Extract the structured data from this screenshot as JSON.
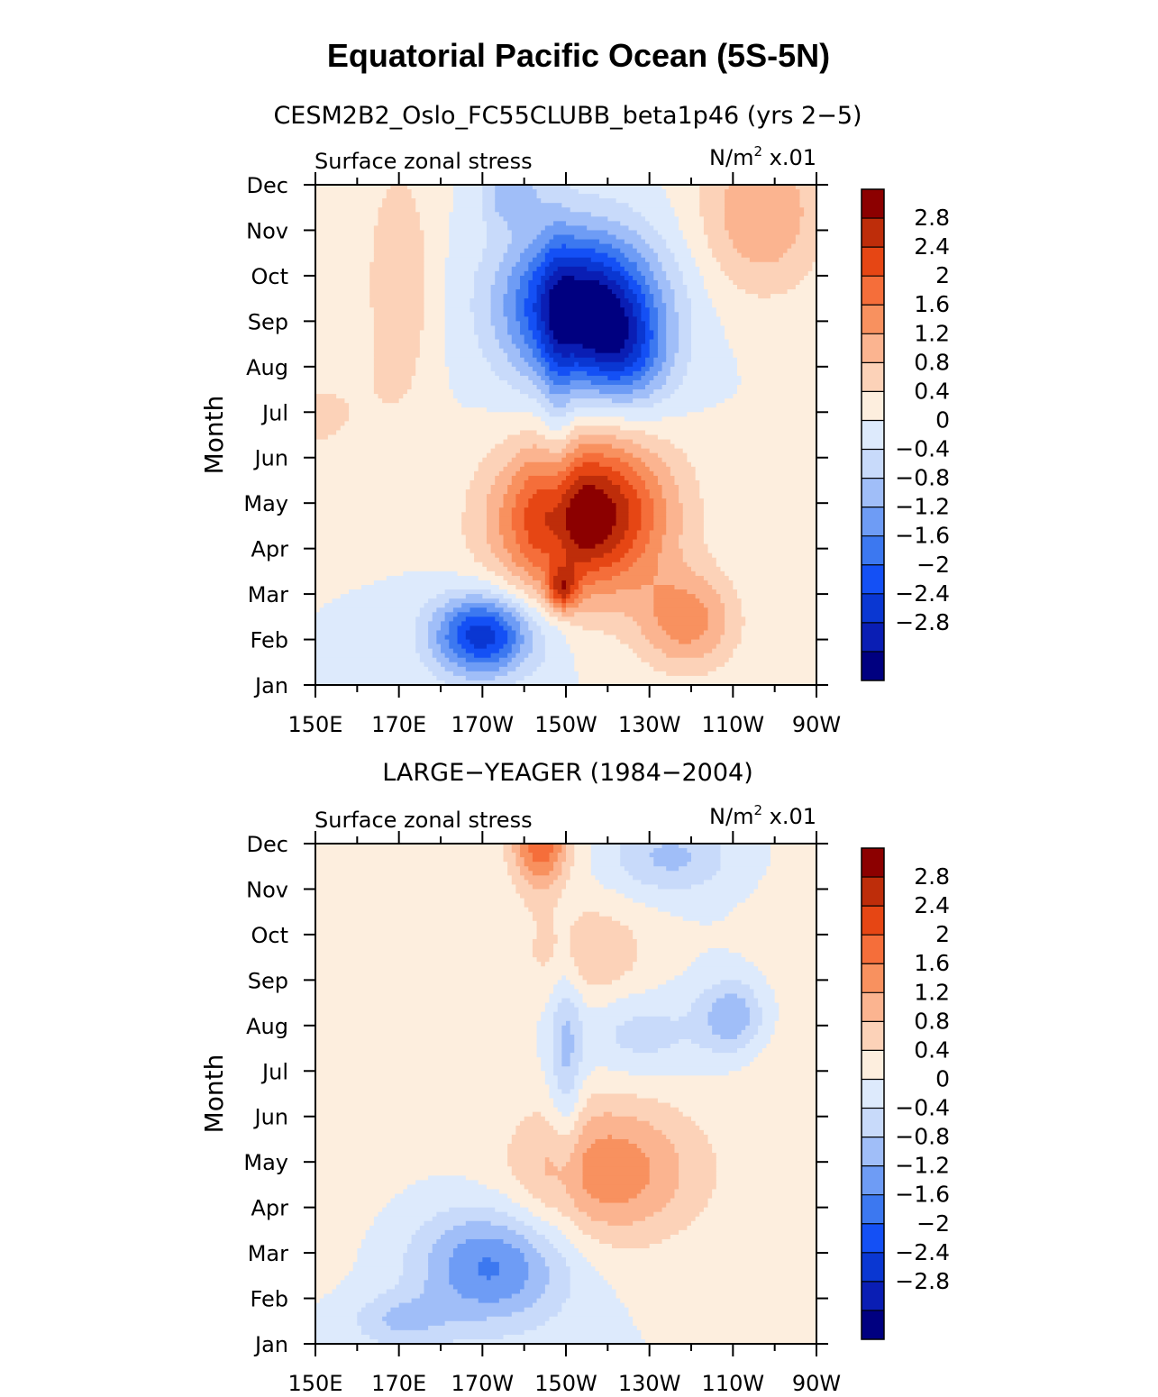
{
  "figure": {
    "title": "Equatorial Pacific Ocean (5S-5N)"
  },
  "colors": {
    "palette": [
      "#000080",
      "#0a1eb4",
      "#0a37d2",
      "#1450f5",
      "#3c78f0",
      "#6e9cf5",
      "#a0bef8",
      "#c8dafa",
      "#ddeafc",
      "#fdeede",
      "#fcd2b8",
      "#fbb490",
      "#f8915f",
      "#f56e3a",
      "#e64614",
      "#be2d0a",
      "#8c0000"
    ]
  },
  "chart_data": [
    {
      "type": "heatmap",
      "subtitle": "CESM2B2_Oslo_FC55CLUBB_beta1p46 (yrs 2−5)",
      "left_label": "Surface zonal stress",
      "right_label": "N/m",
      "units_exponent": "2",
      "units_scale": "x.01",
      "ylabel": "Month",
      "x_ticks": [
        "150E",
        "170E",
        "170W",
        "150W",
        "130W",
        "110W",
        "90W"
      ],
      "x_range_deg_lon": [
        150,
        270
      ],
      "y_ticks": [
        "Jan",
        "Feb",
        "Mar",
        "Apr",
        "May",
        "Jun",
        "Jul",
        "Aug",
        "Sep",
        "Oct",
        "Nov",
        "Dec"
      ],
      "colorbar_labels": [
        "2.8",
        "2.4",
        "2",
        "1.6",
        "1.2",
        "0.8",
        "0.4",
        "0",
        "−0.4",
        "−0.8",
        "−1.2",
        "−1.6",
        "−2",
        "−2.4",
        "−2.8"
      ],
      "levels": [
        -3.2,
        -2.8,
        -2.4,
        -2.0,
        -1.6,
        -1.2,
        -0.8,
        -0.4,
        0,
        0.4,
        0.8,
        1.2,
        1.6,
        2.0,
        2.4,
        2.8
      ],
      "blobs": [
        {
          "lon": 146,
          "month": 8.3,
          "rlon": 18,
          "rmonth": 1.7,
          "value": -3.5,
          "rot": -25
        },
        {
          "lon": 136,
          "month": 7.3,
          "rlon": 10,
          "rmonth": 1.2,
          "value": -1.2,
          "rot": -20
        },
        {
          "lon": 197,
          "month": 10.8,
          "rlon": 7,
          "rmonth": 0.7,
          "value": -1.0,
          "rot": 0
        },
        {
          "lon": 146,
          "month": 3.7,
          "rlon": 20,
          "rmonth": 1.7,
          "value": 3.3,
          "rot": -25
        },
        {
          "lon": 121,
          "month": 1.4,
          "rlon": 12,
          "rmonth": 1.1,
          "value": 1.4,
          "rot": 0
        },
        {
          "lon": 103,
          "month": 10.4,
          "rlon": 15,
          "rmonth": 1.8,
          "value": 1.2,
          "rot": 0
        },
        {
          "lon": 170,
          "month": 8.8,
          "rlon": 8,
          "rmonth": 2.7,
          "value": 0.8,
          "rot": 0
        },
        {
          "lon": 190,
          "month": 1.1,
          "rlon": 12,
          "rmonth": 0.9,
          "value": -2.7,
          "rot": 0
        },
        {
          "lon": 209,
          "month": 2.1,
          "rlon": 3.5,
          "rmonth": 0.5,
          "value": 1.8,
          "rot": 0
        },
        {
          "lon": 208,
          "month": 5.8,
          "rlon": 4,
          "rmonth": 4.5,
          "value": -0.6,
          "rot": 0
        },
        {
          "lon": 150,
          "month": 5.9,
          "rlon": 15,
          "rmonth": 1.1,
          "value": 0.5,
          "rot": -20
        }
      ]
    },
    {
      "type": "heatmap",
      "subtitle": "LARGE−YEAGER (1984−2004)",
      "left_label": "Surface zonal stress",
      "right_label": "N/m",
      "units_exponent": "2",
      "units_scale": "x.01",
      "ylabel": "Month",
      "x_ticks": [
        "150E",
        "170E",
        "170W",
        "150W",
        "130W",
        "110W",
        "90W"
      ],
      "x_range_deg_lon": [
        150,
        270
      ],
      "y_ticks": [
        "Jan",
        "Feb",
        "Mar",
        "Apr",
        "May",
        "Jun",
        "Jul",
        "Aug",
        "Sep",
        "Oct",
        "Nov",
        "Dec"
      ],
      "colorbar_labels": [
        "2.8",
        "2.4",
        "2",
        "1.6",
        "1.2",
        "0.8",
        "0.4",
        "0",
        "−0.4",
        "−0.8",
        "−1.2",
        "−1.6",
        "−2",
        "−2.4",
        "−2.8"
      ],
      "levels": [
        -3.2,
        -2.8,
        -2.4,
        -2.0,
        -1.6,
        -1.2,
        -0.8,
        -0.4,
        0,
        0.4,
        0.8,
        1.2,
        1.6,
        2.0,
        2.4,
        2.8
      ],
      "blobs": [
        {
          "lon": 192,
          "month": 1.7,
          "rlon": 18,
          "rmonth": 1.3,
          "value": -1.7,
          "rot": 0
        },
        {
          "lon": 170,
          "month": 0.5,
          "rlon": 12,
          "rmonth": 0.6,
          "value": -0.8,
          "rot": 0
        },
        {
          "lon": 210,
          "month": 6.3,
          "rlon": 4,
          "rmonth": 2.5,
          "value": -0.9,
          "rot": 0
        },
        {
          "lon": 110,
          "month": 7.2,
          "rlon": 8,
          "rmonth": 0.8,
          "value": -1.2,
          "rot": 0
        },
        {
          "lon": 125,
          "month": 10.7,
          "rlon": 14,
          "rmonth": 0.8,
          "value": -0.9,
          "rot": 0
        },
        {
          "lon": 132,
          "month": 6.8,
          "rlon": 14,
          "rmonth": 0.9,
          "value": -0.6,
          "rot": 0
        },
        {
          "lon": 140,
          "month": 3.8,
          "rlon": 22,
          "rmonth": 1.6,
          "value": 1.5,
          "rot": 0
        },
        {
          "lon": 145,
          "month": 8.6,
          "rlon": 15,
          "rmonth": 1.1,
          "value": 0.8,
          "rot": 0
        },
        {
          "lon": 204,
          "month": 11.1,
          "rlon": 7,
          "rmonth": 1.1,
          "value": 2.0,
          "rot": 0
        },
        {
          "lon": 155,
          "month": 7.5,
          "rlon": 25,
          "rmonth": 5.5,
          "value": 0.2,
          "rot": 0
        },
        {
          "lon": 100,
          "month": 4.5,
          "rlon": 10,
          "rmonth": 4.5,
          "value": 0.3,
          "rot": 0
        }
      ]
    }
  ]
}
